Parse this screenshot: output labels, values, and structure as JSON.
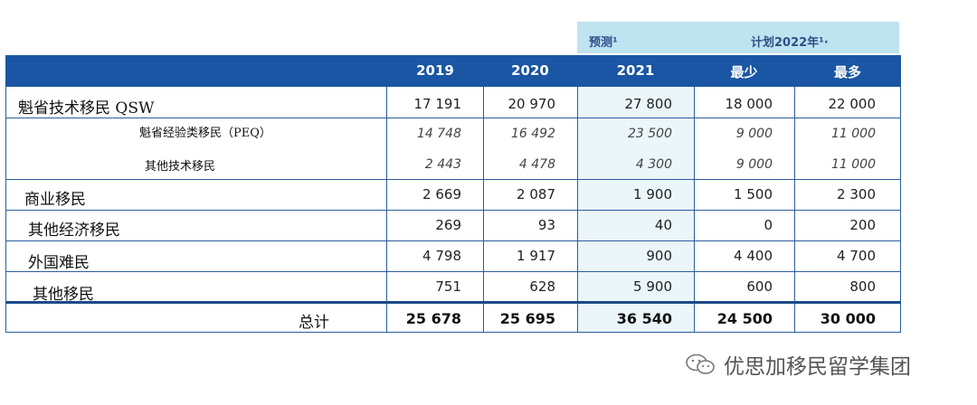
{
  "top_labels": {
    "forecast": "预测¹",
    "plan": "计划2022年¹·"
  },
  "columns": [
    "2019",
    "2020",
    "2021",
    "最少",
    "最多"
  ],
  "rows": [
    {
      "label": "魁省技术移民 QSW",
      "values": [
        "17 191",
        "20 970",
        "27 800",
        "18 000",
        "22 000"
      ]
    },
    {
      "label": "魁省经验类移民（PEQ）",
      "values": [
        "14 748",
        "16 492",
        "23 500",
        "9 000",
        "11 000"
      ]
    },
    {
      "label": "其他技术移民",
      "values": [
        "2 443",
        "4 478",
        "4 300",
        "9 000",
        "11 000"
      ]
    },
    {
      "label": "商业移民",
      "values": [
        "2 669",
        "2 087",
        "1 900",
        "1 500",
        "2 300"
      ]
    },
    {
      "label": "其他经济移民",
      "values": [
        "269",
        "93",
        "40",
        "0",
        "200"
      ]
    },
    {
      "label": "外国难民",
      "values": [
        "4 798",
        "1 917",
        "900",
        "4 400",
        "4 700"
      ]
    },
    {
      "label": "其他移民",
      "values": [
        "751",
        "628",
        "5 900",
        "600",
        "800"
      ]
    },
    {
      "label": "总计",
      "values": [
        "25 678",
        "25 695",
        "36 540",
        "24 500",
        "30 000"
      ]
    }
  ],
  "watermark": {
    "text": "优思加移民留学集团",
    "icon": "wechat-icon"
  },
  "colors": {
    "header": "#1a56a3",
    "forecast_box": "#bfe3ef",
    "shade": "#eaf6fa",
    "lines": "#2b5d9e"
  }
}
